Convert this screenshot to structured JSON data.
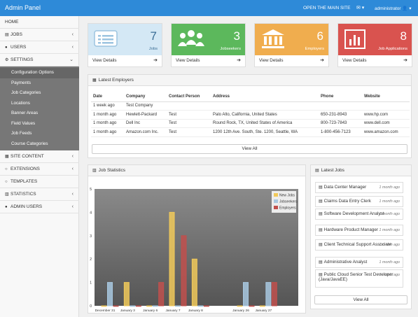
{
  "header": {
    "brand": "Admin Panel",
    "main_site_link": "OPEN THE MAIN SITE",
    "mail_icon": "✉ ▾",
    "user": "administrator",
    "user_icon": "👤 ▾"
  },
  "sidebar": {
    "items": [
      {
        "label": "HOME",
        "icon": "",
        "chevron": ""
      },
      {
        "label": "JOBS",
        "icon": "▤",
        "chevron": "‹"
      },
      {
        "label": "USERS",
        "icon": "●",
        "chevron": "‹"
      },
      {
        "label": "SETTINGS",
        "icon": "⚙",
        "chevron": "⌄"
      },
      {
        "label": "SITE CONTENT",
        "icon": "▦",
        "chevron": "‹"
      },
      {
        "label": "EXTENSIONS",
        "icon": "○",
        "chevron": "‹"
      },
      {
        "label": "TEMPLATES",
        "icon": "○",
        "chevron": ""
      },
      {
        "label": "STATISTICS",
        "icon": "▥",
        "chevron": "‹"
      },
      {
        "label": "ADMIN USERS",
        "icon": "●",
        "chevron": "‹"
      }
    ],
    "settings_sub": [
      "Configuration Options",
      "Payments",
      "Job Categories",
      "Locations",
      "Banner Areas",
      "Field Values",
      "Job Feeds",
      "Course Categories"
    ]
  },
  "cards": [
    {
      "num": "7",
      "label": "Jobs",
      "details": "View Details",
      "color": "#d4e8f5",
      "icon": "list"
    },
    {
      "num": "3",
      "label": "Jobseekers",
      "details": "View Details",
      "color": "#5cb85c",
      "icon": "users"
    },
    {
      "num": "6",
      "label": "Employers",
      "details": "View Details",
      "color": "#f0ad4e",
      "icon": "building"
    },
    {
      "num": "8",
      "label": "Job Applications",
      "details": "View Details",
      "color": "#d9534f",
      "icon": "chart"
    }
  ],
  "employers": {
    "title": "Latest Employers",
    "columns": [
      "Date",
      "Company",
      "Contact Person",
      "Address",
      "Phone",
      "Website"
    ],
    "rows": [
      [
        "1 week ago",
        "Test Company",
        "",
        "",
        "",
        ""
      ],
      [
        "1 month ago",
        "Hewlett-Packard",
        "Test",
        "Palo Alto, California, United States",
        "650-231-8943",
        "www.hp.com"
      ],
      [
        "1 month ago",
        "Dell Inc",
        "Test",
        "Round Rock, TX, United States of America",
        "800-723-7843",
        "www.dell.com"
      ],
      [
        "1 month ago",
        "Amazon.com Inc.",
        "Test",
        "1200 12th Ave. South, Ste. 1200, Seattle, WA",
        "1-800-456-7123",
        "www.amazon.com"
      ]
    ],
    "view_all": "View All"
  },
  "stats": {
    "title": "Job Statistics"
  },
  "chart_data": {
    "type": "bar",
    "categories": [
      "December 31",
      "January 3",
      "January 6",
      "January 7",
      "January 8",
      "January 26",
      "January 27"
    ],
    "series": [
      {
        "name": "New Jobs",
        "color": "#f0c95a",
        "values": [
          0,
          1,
          0,
          4,
          2,
          0,
          0
        ]
      },
      {
        "name": "Jobseekers",
        "color": "#a8c8e0",
        "values": [
          1,
          0,
          0,
          0,
          0,
          1,
          1
        ]
      },
      {
        "name": "Employers",
        "color": "#c0504d",
        "values": [
          0,
          0,
          1,
          3,
          0,
          0,
          1
        ]
      }
    ],
    "ylim": [
      0,
      5
    ],
    "yticks": [
      0,
      1,
      2,
      3,
      4,
      5
    ],
    "legend": "top-right"
  },
  "latest_jobs": {
    "title": "Latest Jobs",
    "items": [
      {
        "title": "Data Center Manager",
        "time": "1 month ago"
      },
      {
        "title": "Claims Data Entry Clerk",
        "time": "1 month ago"
      },
      {
        "title": "Software Development Analyst",
        "time": "1 month ago"
      },
      {
        "title": "Hardware Product Manager",
        "time": "1 month ago"
      },
      {
        "title": "Client Technical Support Associate",
        "time": "1 month ago"
      },
      {
        "title": "Administrative Analyst",
        "time": "1 month ago"
      },
      {
        "title": "Public Cloud Senior Test Developer (Java/JavaEE)",
        "time": "1 month ago"
      }
    ],
    "view_all": "View All"
  }
}
